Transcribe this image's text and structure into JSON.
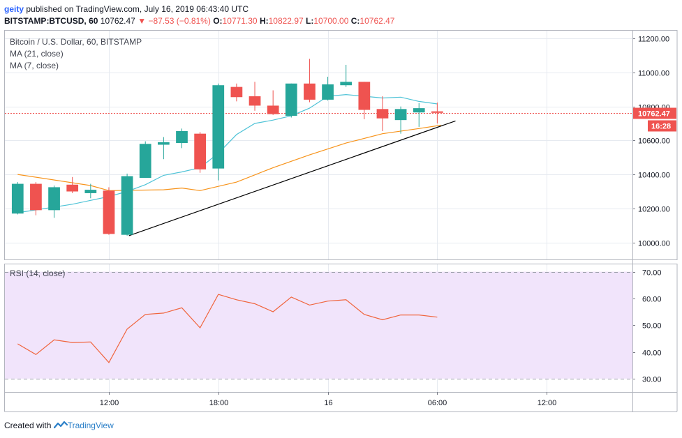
{
  "header": {
    "user": "geity",
    "published_text": "published on TradingView.com, July 16, 2019 06:43:40 UTC",
    "symbol": "BITSTAMP:BTCUSD, 60",
    "last": "10762.47",
    "change_arrow": "▼",
    "change": "−87.53 (−0.81%)",
    "o_label": "O:",
    "o_value": "10771.30",
    "h_label": "H:",
    "h_value": "10822.97",
    "l_label": "L:",
    "l_value": "10700.00",
    "c_label": "C:",
    "c_value": "10762.47"
  },
  "legend": {
    "title": "Bitcoin / U.S. Dollar, 60, BITSTAMP",
    "ma21": "MA (21, close)",
    "ma7": "MA (7, close)",
    "rsi": "RSI (14, close)"
  },
  "price_tag": "10762.47",
  "countdown_tag": "16:28",
  "footer": {
    "created_with": "Created with",
    "brand": "TradingView"
  },
  "colors": {
    "up": "#26a69a",
    "down": "#ef5350",
    "ma21": "#f7931a",
    "ma7": "#4fc3d7",
    "rsi": "#f0643c",
    "rsi_band": "#f1e4fb",
    "trendline": "#000000",
    "grid": "#e6eaf0"
  },
  "chart_data": [
    {
      "type": "candlestick",
      "title": "Bitcoin / U.S. Dollar, 60, BITSTAMP",
      "ylim": [
        9900,
        11250
      ],
      "yticks": [
        10000,
        10200,
        10400,
        10600,
        10800,
        11000,
        11200
      ],
      "ytick_labels": [
        "10000.00",
        "10200.00",
        "10400.00",
        "10600.00",
        "10800.00",
        "11000.00",
        "11200.00"
      ],
      "xticks": [
        {
          "index": 5,
          "label": "12:00"
        },
        {
          "index": 11,
          "label": "18:00"
        },
        {
          "index": 17,
          "label": "16"
        },
        {
          "index": 23,
          "label": "06:00"
        },
        {
          "index": 29,
          "label": "12:00"
        }
      ],
      "x_range_index": [
        -0.7,
        33.7
      ],
      "last_price": 10762.47,
      "candles": [
        {
          "o": 10170,
          "h": 10355,
          "l": 10165,
          "c": 10345
        },
        {
          "o": 10345,
          "h": 10355,
          "l": 10160,
          "c": 10190
        },
        {
          "o": 10190,
          "h": 10335,
          "l": 10145,
          "c": 10325
        },
        {
          "o": 10340,
          "h": 10385,
          "l": 10290,
          "c": 10300
        },
        {
          "o": 10290,
          "h": 10345,
          "l": 10260,
          "c": 10310
        },
        {
          "o": 10305,
          "h": 10325,
          "l": 10045,
          "c": 10050
        },
        {
          "o": 10045,
          "h": 10405,
          "l": 10040,
          "c": 10390
        },
        {
          "o": 10380,
          "h": 10595,
          "l": 10380,
          "c": 10580
        },
        {
          "o": 10575,
          "h": 10620,
          "l": 10490,
          "c": 10590
        },
        {
          "o": 10585,
          "h": 10670,
          "l": 10555,
          "c": 10655
        },
        {
          "o": 10640,
          "h": 10650,
          "l": 10410,
          "c": 10430
        },
        {
          "o": 10435,
          "h": 10935,
          "l": 10365,
          "c": 10925
        },
        {
          "o": 10915,
          "h": 10935,
          "l": 10830,
          "c": 10855
        },
        {
          "o": 10860,
          "h": 10945,
          "l": 10775,
          "c": 10805
        },
        {
          "o": 10805,
          "h": 10895,
          "l": 10750,
          "c": 10755
        },
        {
          "o": 10745,
          "h": 10935,
          "l": 10735,
          "c": 10935
        },
        {
          "o": 10935,
          "h": 11080,
          "l": 10825,
          "c": 10840
        },
        {
          "o": 10840,
          "h": 10975,
          "l": 10835,
          "c": 10930
        },
        {
          "o": 10925,
          "h": 11045,
          "l": 10915,
          "c": 10945
        },
        {
          "o": 10945,
          "h": 10945,
          "l": 10725,
          "c": 10780
        },
        {
          "o": 10785,
          "h": 10860,
          "l": 10655,
          "c": 10730
        },
        {
          "o": 10720,
          "h": 10800,
          "l": 10640,
          "c": 10785
        },
        {
          "o": 10765,
          "h": 10820,
          "l": 10680,
          "c": 10790
        },
        {
          "o": 10771.3,
          "h": 10822.97,
          "l": 10700,
          "c": 10762.47
        }
      ],
      "ma21": {
        "name": "MA (21, close)",
        "x": [
          0,
          4,
          5,
          8,
          9,
          10,
          12,
          14,
          16,
          18,
          20,
          22,
          23.2
        ],
        "y": [
          10400,
          10335,
          10305,
          10310,
          10320,
          10305,
          10355,
          10440,
          10515,
          10585,
          10640,
          10670,
          10690
        ]
      },
      "ma7": {
        "name": "MA (7, close)",
        "x": [
          0,
          3,
          5,
          6,
          7,
          8,
          9,
          10,
          11,
          12,
          13,
          14,
          15,
          16,
          17,
          18,
          19,
          20,
          21,
          22,
          23
        ],
        "y": [
          10175,
          10225,
          10270,
          10300,
          10340,
          10395,
          10415,
          10440,
          10525,
          10635,
          10700,
          10720,
          10745,
          10790,
          10860,
          10870,
          10860,
          10850,
          10855,
          10830,
          10815
        ]
      },
      "trendline": {
        "x": [
          6.1,
          24
        ],
        "y": [
          10040,
          10715
        ]
      }
    },
    {
      "type": "line",
      "title": "RSI (14, close)",
      "ylim": [
        25,
        73
      ],
      "yticks": [
        30,
        40,
        50,
        60,
        70
      ],
      "ytick_labels": [
        "30.00",
        "40.00",
        "50.00",
        "60.00",
        "70.00"
      ],
      "band": [
        30,
        70
      ],
      "series": [
        {
          "name": "RSI (14, close)",
          "x": [
            0,
            1,
            2,
            3,
            4,
            5,
            6,
            7,
            8,
            9,
            10,
            11,
            12,
            13,
            14,
            15,
            16,
            17,
            18,
            19,
            20,
            21,
            22,
            23
          ],
          "y": [
            43,
            39,
            44.5,
            43.5,
            43.7,
            36,
            48.5,
            54,
            54.5,
            56.5,
            49,
            61.5,
            59.5,
            58,
            55,
            60.5,
            57.5,
            59,
            59.5,
            54,
            52,
            53.8,
            53.8,
            53
          ]
        }
      ]
    }
  ]
}
